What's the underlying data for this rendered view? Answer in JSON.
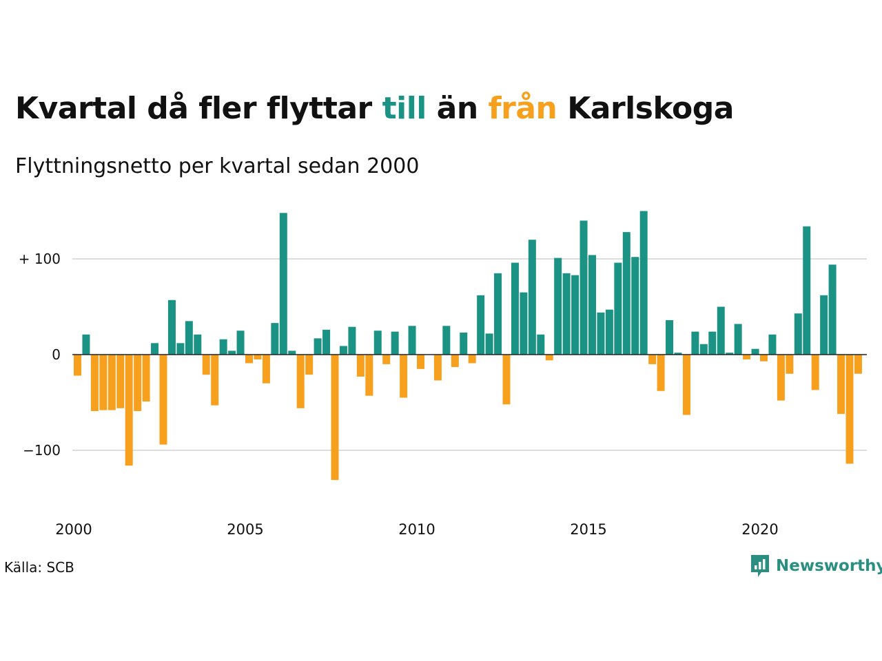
{
  "header": {
    "title_parts": [
      {
        "text": "Kvartal då fler flyttar ",
        "role": "plain"
      },
      {
        "text": "till",
        "role": "positive"
      },
      {
        "text": " än ",
        "role": "plain"
      },
      {
        "text": "från",
        "role": "negative"
      },
      {
        "text": " Karlskoga",
        "role": "plain"
      }
    ],
    "subtitle": "Flyttningsnetto per kvartal sedan 2000"
  },
  "footer": {
    "source": "Källa: SCB",
    "brand": "Newsworthy"
  },
  "colors": {
    "positive": "#1a9385",
    "negative": "#f7a01e",
    "grid": "#dddddd",
    "zero_line": "#222222",
    "text": "#111111",
    "brand": "#2a8f80"
  },
  "icons": {
    "brand_logo": "newsworthy-chart-bubble-icon"
  },
  "chart_data": {
    "type": "bar",
    "title": "Kvartal då fler flyttar till än från Karlskoga",
    "subtitle": "Flyttningsnetto per kvartal sedan 2000",
    "xlabel": "",
    "ylabel": "",
    "first_quarter": "2000 K1",
    "x_ticks": [
      {
        "label": "2000",
        "year": 2000
      },
      {
        "label": "2005",
        "year": 2005
      },
      {
        "label": "2010",
        "year": 2010
      },
      {
        "label": "2015",
        "year": 2015
      },
      {
        "label": "2020",
        "year": 2020
      }
    ],
    "y_ticks": [
      {
        "value": 100,
        "label": "+ 100"
      },
      {
        "value": 0,
        "label": "0"
      },
      {
        "value": -100,
        "label": "−100"
      }
    ],
    "ylim": [
      -160,
      155
    ],
    "grid": true,
    "legend": "none (colours explained in title)",
    "values": [
      -22,
      21,
      -59,
      -58,
      -58,
      -56,
      -116,
      -59,
      -49,
      12,
      -94,
      57,
      12,
      35,
      21,
      -21,
      -53,
      16,
      4,
      25,
      -9,
      -5,
      -30,
      33,
      148,
      4,
      -56,
      -21,
      17,
      26,
      -131,
      9,
      29,
      -23,
      -43,
      25,
      -10,
      24,
      -45,
      30,
      -15,
      0,
      -27,
      30,
      -13,
      23,
      -9,
      62,
      22,
      85,
      -52,
      96,
      65,
      120,
      21,
      -6,
      101,
      85,
      83,
      140,
      104,
      44,
      47,
      96,
      128,
      102,
      150,
      -10,
      -38,
      36,
      2,
      -63,
      24,
      11,
      24,
      50,
      2,
      32,
      -5,
      6,
      -7,
      21,
      -48,
      -20,
      43,
      134,
      -37,
      62,
      94,
      -62,
      -114,
      -20
    ]
  }
}
